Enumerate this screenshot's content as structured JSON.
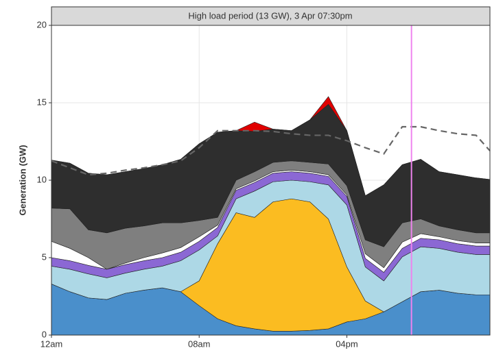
{
  "chart_data": {
    "type": "stacked_area",
    "title": "High load period (13 GW), 3 Apr 07:30pm",
    "y_label": "Generation (GW)",
    "x": [
      0,
      1,
      2,
      3,
      4,
      5,
      6,
      7,
      8,
      9,
      10,
      11,
      12,
      13,
      14,
      15,
      16,
      17,
      18,
      19,
      20,
      21,
      22,
      23,
      23.75
    ],
    "xlim": [
      0,
      23.75
    ],
    "xticks": [
      {
        "value": 0,
        "label": "12am"
      },
      {
        "value": 8,
        "label": "08am"
      },
      {
        "value": 16,
        "label": "04pm"
      }
    ],
    "ylim": [
      0,
      20
    ],
    "yticks": [
      0,
      5,
      10,
      15,
      20
    ],
    "grid": true,
    "series": [
      {
        "color": "#4a8fcb",
        "values": [
          3.3,
          2.8,
          2.4,
          2.3,
          2.7,
          2.9,
          3.05,
          2.8,
          1.9,
          1.05,
          0.6,
          0.4,
          0.25,
          0.25,
          0.3,
          0.4,
          0.85,
          1.05,
          1.5,
          2.15,
          2.8,
          2.9,
          2.7,
          2.6,
          2.6
        ]
      },
      {
        "color": "#fbbc21",
        "values": [
          0,
          0,
          0,
          0,
          0,
          0,
          0,
          0,
          1.6,
          4.85,
          7.3,
          7.2,
          8.35,
          8.55,
          8.3,
          7.1,
          3.55,
          1.15,
          0,
          0,
          0,
          0,
          0,
          0,
          0
        ]
      },
      {
        "color": "#add8e6",
        "values": [
          1.15,
          1.45,
          1.55,
          1.4,
          1.3,
          1.35,
          1.4,
          2.0,
          2.0,
          0.5,
          0.9,
          1.7,
          1.3,
          1.2,
          1.3,
          2.2,
          4.0,
          2.2,
          2.0,
          2.9,
          2.9,
          2.7,
          2.65,
          2.6,
          2.6
        ]
      },
      {
        "color": "#8b68d4",
        "values": [
          0.55,
          0.55,
          0.55,
          0.55,
          0.55,
          0.55,
          0.55,
          0.55,
          0.55,
          0.55,
          0.55,
          0.55,
          0.55,
          0.55,
          0.55,
          0.55,
          0.55,
          0.55,
          0.55,
          0.55,
          0.55,
          0.55,
          0.55,
          0.55,
          0.55
        ]
      },
      {
        "color": "#ffffff",
        "values": [
          1.05,
          0.8,
          0.5,
          0,
          0.1,
          0.2,
          0.3,
          0.3,
          0.3,
          0.15,
          0.1,
          0.1,
          0.1,
          0.1,
          0.1,
          0.1,
          0.1,
          0.3,
          0.3,
          0.4,
          0.3,
          0.2,
          0.2,
          0.2,
          0.2
        ]
      },
      {
        "color": "#7f7f7f",
        "values": [
          2.15,
          2.55,
          1.8,
          2.35,
          2.25,
          2.05,
          1.95,
          1.6,
          1.05,
          0.5,
          0.55,
          0.6,
          0.6,
          0.6,
          0.6,
          0.7,
          0.6,
          0.9,
          1.35,
          1.25,
          0.95,
          0.7,
          0.7,
          0.65,
          0.65
        ]
      },
      {
        "color": "#2e2e2e",
        "values": [
          3.1,
          2.95,
          3.65,
          3.75,
          3.65,
          3.7,
          3.75,
          4.1,
          4.95,
          5.5,
          3.2,
          2.6,
          2.15,
          1.95,
          2.75,
          3.85,
          3.55,
          2.85,
          4.0,
          3.75,
          3.85,
          3.5,
          3.55,
          3.55,
          3.45
        ]
      },
      {
        "color": "#e00000",
        "values": [
          0,
          0,
          0,
          0,
          0,
          0,
          0,
          0,
          0,
          0,
          0,
          0.6,
          0,
          0,
          0,
          0.5,
          0,
          0,
          0,
          0,
          0,
          0,
          0,
          0,
          0
        ]
      }
    ],
    "demand": {
      "color": "#666666",
      "dashed": true,
      "values": [
        11.25,
        10.8,
        10.35,
        10.45,
        10.65,
        10.8,
        11.0,
        11.25,
        12.1,
        13.2,
        13.2,
        13.2,
        13.15,
        13.0,
        12.9,
        12.9,
        12.55,
        12.1,
        11.7,
        13.45,
        13.45,
        13.2,
        13.0,
        12.9,
        11.9
      ]
    },
    "vline": {
      "x": 19.5,
      "color": "#ee82ee"
    }
  }
}
